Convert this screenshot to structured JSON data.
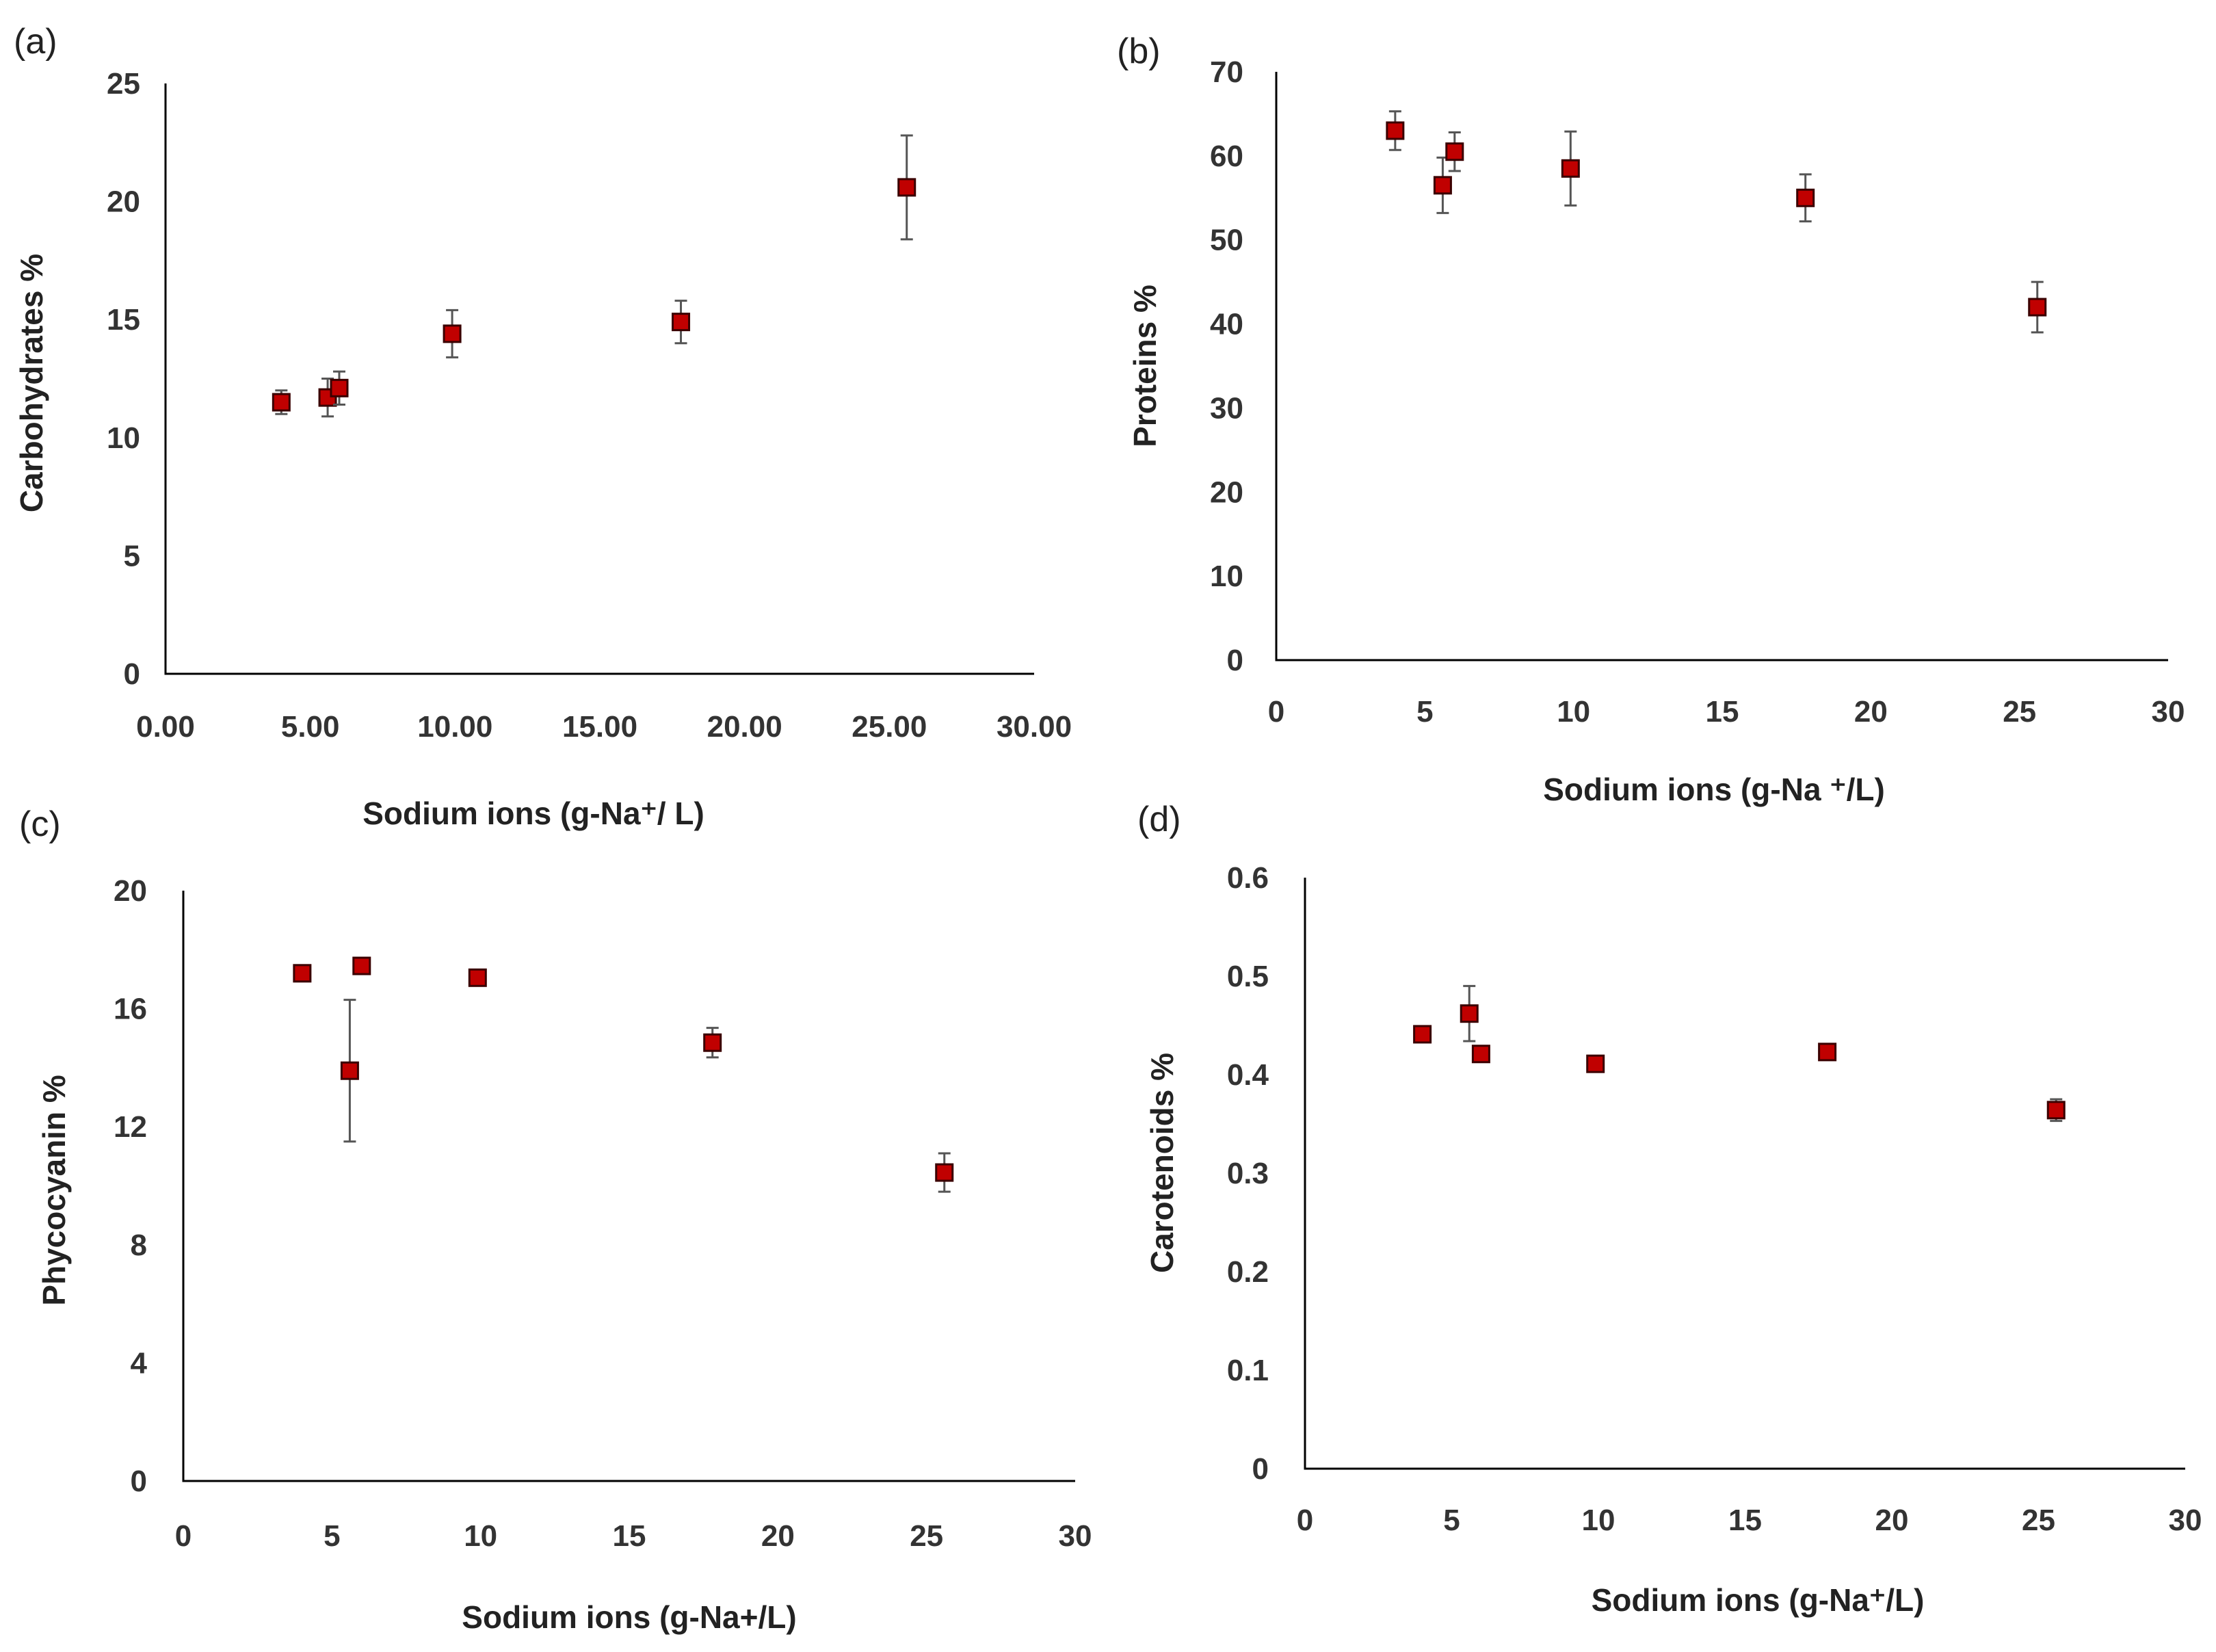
{
  "chart_data": [
    {
      "type": "scatter",
      "panel": "(a)",
      "title": "",
      "xlabel": "Sodium ions (g-Na⁺/ L)",
      "ylabel": "Carbohydrates %",
      "xlim": [
        0,
        30
      ],
      "ylim": [
        0,
        25
      ],
      "xticks": [
        "0.00",
        "5.00",
        "10.00",
        "15.00",
        "20.00",
        "25.00",
        "30.00"
      ],
      "xtick_values": [
        0,
        5,
        10,
        15,
        20,
        25,
        30
      ],
      "yticks": [
        "0",
        "5",
        "10",
        "15",
        "20",
        "25"
      ],
      "ytick_values": [
        0,
        5,
        10,
        15,
        20,
        25
      ],
      "grid": false,
      "series": [
        {
          "name": "Carbohydrates",
          "x": [
            4.0,
            5.6,
            6.0,
            9.9,
            17.8,
            25.6
          ],
          "y": [
            11.5,
            11.7,
            12.1,
            14.4,
            14.9,
            20.6
          ],
          "error": [
            0.5,
            0.8,
            0.7,
            1.0,
            0.9,
            2.2
          ]
        }
      ]
    },
    {
      "type": "scatter",
      "panel": "(b)",
      "title": "",
      "xlabel": "Sodium ions (g-Na ⁺/L)",
      "ylabel": "Proteins %",
      "xlim": [
        0,
        30
      ],
      "ylim": [
        0,
        70
      ],
      "xticks": [
        "0",
        "5",
        "10",
        "15",
        "20",
        "25",
        "30"
      ],
      "xtick_values": [
        0,
        5,
        10,
        15,
        20,
        25,
        30
      ],
      "yticks": [
        "0",
        "10",
        "20",
        "30",
        "40",
        "50",
        "60",
        "70"
      ],
      "ytick_values": [
        0,
        10,
        20,
        30,
        40,
        50,
        60,
        70
      ],
      "grid": false,
      "series": [
        {
          "name": "Proteins",
          "x": [
            4.0,
            5.6,
            6.0,
            9.9,
            17.8,
            25.6
          ],
          "y": [
            63.0,
            56.5,
            60.5,
            58.5,
            55.0,
            42.0
          ],
          "error": [
            2.3,
            3.3,
            2.3,
            4.4,
            2.8,
            3.0
          ]
        }
      ]
    },
    {
      "type": "scatter",
      "panel": "(c)",
      "title": "",
      "xlabel": "Sodium ions (g-Na+/L)",
      "ylabel": "Phycocyanin %",
      "xlim": [
        0,
        30
      ],
      "ylim": [
        0,
        20
      ],
      "xticks": [
        "0",
        "5",
        "10",
        "15",
        "20",
        "25",
        "30"
      ],
      "xtick_values": [
        0,
        5,
        10,
        15,
        20,
        25,
        30
      ],
      "yticks": [
        "0",
        "4",
        "8",
        "12",
        "16",
        "20"
      ],
      "ytick_values": [
        0,
        4,
        8,
        12,
        16,
        20
      ],
      "grid": false,
      "series": [
        {
          "name": "Phycocyanin",
          "x": [
            4.0,
            5.6,
            6.0,
            9.9,
            17.8,
            25.6
          ],
          "y": [
            17.2,
            13.9,
            17.45,
            17.05,
            14.85,
            10.45
          ],
          "error": [
            0.1,
            2.4,
            0.25,
            0.1,
            0.5,
            0.65
          ]
        }
      ]
    },
    {
      "type": "scatter",
      "panel": "(d)",
      "title": "",
      "xlabel": "Sodium ions (g-Na⁺/L)",
      "ylabel": "Carotenoids %",
      "xlim": [
        0,
        30
      ],
      "ylim": [
        0,
        0.6
      ],
      "xticks": [
        "0",
        "5",
        "10",
        "15",
        "20",
        "25",
        "30"
      ],
      "xtick_values": [
        0,
        5,
        10,
        15,
        20,
        25,
        30
      ],
      "yticks": [
        "0",
        "0.1",
        "0.2",
        "0.3",
        "0.4",
        "0.5",
        "0.6"
      ],
      "ytick_values": [
        0,
        0.1,
        0.2,
        0.3,
        0.4,
        0.5,
        0.6
      ],
      "grid": false,
      "series": [
        {
          "name": "Carotenoids",
          "x": [
            4.0,
            5.6,
            6.0,
            9.9,
            17.8,
            25.6
          ],
          "y": [
            0.441,
            0.462,
            0.421,
            0.411,
            0.423,
            0.364
          ],
          "error": [
            0.004,
            0.028,
            0.006,
            0.004,
            0.004,
            0.011
          ]
        }
      ]
    }
  ],
  "colors": {
    "marker_fill": "#c00000",
    "marker_edge": "#3a0000",
    "axis": "#000000",
    "error_bar": "#555555"
  }
}
